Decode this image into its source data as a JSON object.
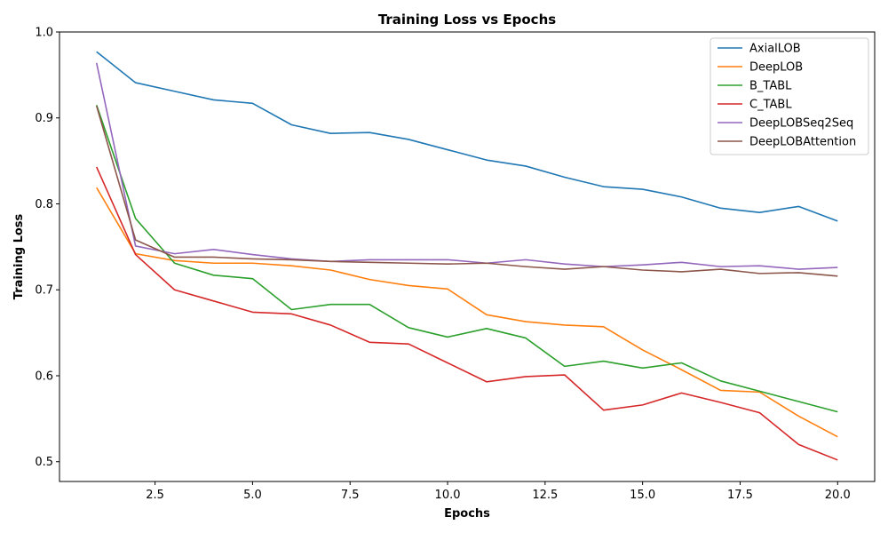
{
  "chart_data": {
    "type": "line",
    "title": "Training Loss vs Epochs",
    "xlabel": "Epochs",
    "ylabel": "Training Loss",
    "xlim": [
      0.05,
      20.95
    ],
    "ylim": [
      0.477,
      1.0
    ],
    "x_ticks": [
      2.5,
      5.0,
      7.5,
      10.0,
      12.5,
      15.0,
      17.5,
      20.0
    ],
    "x_tick_labels": [
      "2.5",
      "5.0",
      "7.5",
      "10.0",
      "12.5",
      "15.0",
      "17.5",
      "20.0"
    ],
    "y_ticks": [
      0.5,
      0.6,
      0.7,
      0.8,
      0.9,
      1.0
    ],
    "y_tick_labels": [
      "0.5",
      "0.6",
      "0.7",
      "0.8",
      "0.9",
      "1.0"
    ],
    "grid": false,
    "legend_position": "top-right",
    "x": [
      1,
      2,
      3,
      4,
      5,
      6,
      7,
      8,
      9,
      10,
      11,
      12,
      13,
      14,
      15,
      16,
      17,
      18,
      19,
      20
    ],
    "series": [
      {
        "name": "AxialLOB",
        "color": "#1f77b4",
        "values": [
          0.977,
          0.941,
          0.931,
          0.921,
          0.917,
          0.892,
          0.882,
          0.883,
          0.875,
          0.863,
          0.851,
          0.844,
          0.831,
          0.82,
          0.817,
          0.808,
          0.795,
          0.79,
          0.797,
          0.78
        ]
      },
      {
        "name": "DeepLOB",
        "color": "#ff7f0e",
        "values": [
          0.819,
          0.742,
          0.734,
          0.731,
          0.731,
          0.728,
          0.723,
          0.712,
          0.705,
          0.701,
          0.671,
          0.663,
          0.659,
          0.657,
          0.63,
          0.607,
          0.583,
          0.581,
          0.553,
          0.529
        ]
      },
      {
        "name": "B_TABL",
        "color": "#2ca02c",
        "values": [
          0.915,
          0.783,
          0.731,
          0.717,
          0.713,
          0.677,
          0.683,
          0.683,
          0.656,
          0.645,
          0.655,
          0.644,
          0.611,
          0.617,
          0.609,
          0.615,
          0.594,
          0.582,
          0.57,
          0.558
        ]
      },
      {
        "name": "C_TABL",
        "color": "#d62728",
        "values": [
          0.843,
          0.741,
          0.7,
          0.687,
          0.674,
          0.672,
          0.659,
          0.639,
          0.637,
          0.615,
          0.593,
          0.599,
          0.601,
          0.56,
          0.566,
          0.58,
          0.569,
          0.557,
          0.52,
          0.502
        ]
      },
      {
        "name": "DeepLOBSeq2Seq",
        "color": "#9467bd",
        "values": [
          0.964,
          0.751,
          0.742,
          0.747,
          0.741,
          0.736,
          0.733,
          0.735,
          0.735,
          0.735,
          0.731,
          0.735,
          0.73,
          0.727,
          0.729,
          0.732,
          0.727,
          0.728,
          0.724,
          0.726
        ]
      },
      {
        "name": "DeepLOBAttention",
        "color": "#8c564b",
        "values": [
          0.914,
          0.758,
          0.738,
          0.738,
          0.736,
          0.735,
          0.733,
          0.732,
          0.731,
          0.73,
          0.731,
          0.727,
          0.724,
          0.727,
          0.723,
          0.721,
          0.724,
          0.719,
          0.72,
          0.716
        ]
      }
    ]
  }
}
